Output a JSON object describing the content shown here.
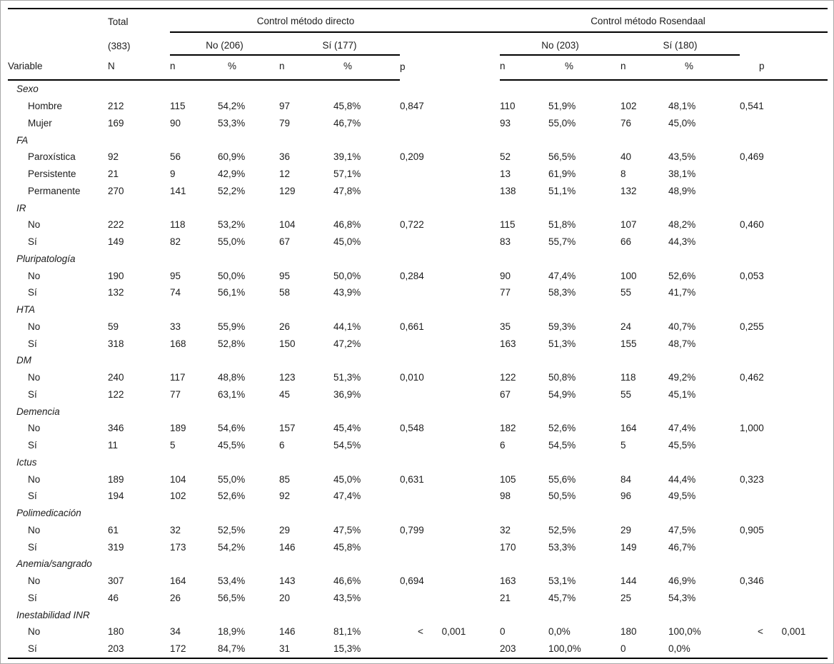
{
  "colors": {
    "background": "#ffffff",
    "rule": "#000000",
    "text": "#1c1c1c",
    "outer_border": "#a8a8a8"
  },
  "header": {
    "variable": "Variable",
    "total_title": "Total",
    "total_sub": "(383)",
    "total_col": "N",
    "group_direct": {
      "title": "Control método directo",
      "no": "No (206)",
      "si": "Sí (177)"
    },
    "group_rosendaal": {
      "title": "Control método Rosendaal",
      "no": "No (203)",
      "si": "Sí (180)"
    },
    "n": "n",
    "pct": "%",
    "p": "p"
  },
  "sections": [
    {
      "variable": "Sexo",
      "rows": [
        {
          "label": "Hombre",
          "cells": [
            "212",
            "115",
            "54,2%",
            "97",
            "45,8%",
            "0,847",
            "110",
            "51,9%",
            "102",
            "48,1%",
            "0,541"
          ]
        },
        {
          "label": "Mujer",
          "cells": [
            "169",
            "90",
            "53,3%",
            "79",
            "46,7%",
            "",
            "93",
            "55,0%",
            "76",
            "45,0%",
            ""
          ]
        }
      ]
    },
    {
      "variable": "FA",
      "rows": [
        {
          "label": "Paroxística",
          "cells": [
            "92",
            "56",
            "60,9%",
            "36",
            "39,1%",
            "0,209",
            "52",
            "56,5%",
            "40",
            "43,5%",
            "0,469"
          ]
        },
        {
          "label": "Persistente",
          "cells": [
            "21",
            "9",
            "42,9%",
            "12",
            "57,1%",
            "",
            "13",
            "61,9%",
            "8",
            "38,1%",
            ""
          ]
        },
        {
          "label": "Permanente",
          "cells": [
            "270",
            "141",
            "52,2%",
            "129",
            "47,8%",
            "",
            "138",
            "51,1%",
            "132",
            "48,9%",
            ""
          ]
        }
      ]
    },
    {
      "variable": "IR",
      "rows": [
        {
          "label": "No",
          "cells": [
            "222",
            "118",
            "53,2%",
            "104",
            "46,8%",
            "0,722",
            "115",
            "51,8%",
            "107",
            "48,2%",
            "0,460"
          ]
        },
        {
          "label": "Sí",
          "cells": [
            "149",
            "82",
            "55,0%",
            "67",
            "45,0%",
            "",
            "83",
            "55,7%",
            "66",
            "44,3%",
            ""
          ]
        }
      ]
    },
    {
      "variable": "Pluripatología",
      "rows": [
        {
          "label": "No",
          "cells": [
            "190",
            "95",
            "50,0%",
            "95",
            "50,0%",
            "0,284",
            "90",
            "47,4%",
            "100",
            "52,6%",
            "0,053"
          ]
        },
        {
          "label": "Sí",
          "cells": [
            "132",
            "74",
            "56,1%",
            "58",
            "43,9%",
            "",
            "77",
            "58,3%",
            "55",
            "41,7%",
            ""
          ]
        }
      ]
    },
    {
      "variable": "HTA",
      "rows": [
        {
          "label": "No",
          "cells": [
            "59",
            "33",
            "55,9%",
            "26",
            "44,1%",
            "0,661",
            "35",
            "59,3%",
            "24",
            "40,7%",
            "0,255"
          ]
        },
        {
          "label": "Sí",
          "cells": [
            "318",
            "168",
            "52,8%",
            "150",
            "47,2%",
            "",
            "163",
            "51,3%",
            "155",
            "48,7%",
            ""
          ]
        }
      ]
    },
    {
      "variable": "DM",
      "rows": [
        {
          "label": "No",
          "cells": [
            "240",
            "117",
            "48,8%",
            "123",
            "51,3%",
            "0,010",
            "122",
            "50,8%",
            "118",
            "49,2%",
            "0,462"
          ]
        },
        {
          "label": "Sí",
          "cells": [
            "122",
            "77",
            "63,1%",
            "45",
            "36,9%",
            "",
            "67",
            "54,9%",
            "55",
            "45,1%",
            ""
          ]
        }
      ]
    },
    {
      "variable": "Demencia",
      "rows": [
        {
          "label": "No",
          "cells": [
            "346",
            "189",
            "54,6%",
            "157",
            "45,4%",
            "0,548",
            "182",
            "52,6%",
            "164",
            "47,4%",
            "1,000"
          ]
        },
        {
          "label": "Sí",
          "cells": [
            "11",
            "5",
            "45,5%",
            "6",
            "54,5%",
            "",
            "6",
            "54,5%",
            "5",
            "45,5%",
            ""
          ]
        }
      ]
    },
    {
      "variable": "Ictus",
      "rows": [
        {
          "label": "No",
          "cells": [
            "189",
            "104",
            "55,0%",
            "85",
            "45,0%",
            "0,631",
            "105",
            "55,6%",
            "84",
            "44,4%",
            "0,323"
          ]
        },
        {
          "label": "Sí",
          "cells": [
            "194",
            "102",
            "52,6%",
            "92",
            "47,4%",
            "",
            "98",
            "50,5%",
            "96",
            "49,5%",
            ""
          ]
        }
      ]
    },
    {
      "variable": "Polimedicación",
      "rows": [
        {
          "label": "No",
          "cells": [
            "61",
            "32",
            "52,5%",
            "29",
            "47,5%",
            "0,799",
            "32",
            "52,5%",
            "29",
            "47,5%",
            "0,905"
          ]
        },
        {
          "label": "Sí",
          "cells": [
            "319",
            "173",
            "54,2%",
            "146",
            "45,8%",
            "",
            "170",
            "53,3%",
            "149",
            "46,7%",
            ""
          ]
        }
      ]
    },
    {
      "variable": "Anemia/sangrado",
      "rows": [
        {
          "label": "No",
          "cells": [
            "307",
            "164",
            "53,4%",
            "143",
            "46,6%",
            "0,694",
            "163",
            "53,1%",
            "144",
            "46,9%",
            "0,346"
          ]
        },
        {
          "label": "Sí",
          "cells": [
            "46",
            "26",
            "56,5%",
            "20",
            "43,5%",
            "",
            "21",
            "45,7%",
            "25",
            "54,3%",
            ""
          ]
        }
      ]
    },
    {
      "variable": "Inestabilidad INR",
      "rows": [
        {
          "label": "No",
          "cells": [
            "180",
            "34",
            "18,9%",
            "146",
            "81,1%",
            "< 0,001",
            "0",
            "0,0%",
            "180",
            "100,0%",
            "< 0,001"
          ]
        },
        {
          "label": "Sí",
          "cells": [
            "203",
            "172",
            "84,7%",
            "31",
            "15,3%",
            "",
            "203",
            "100,0%",
            "0",
            "0,0%",
            ""
          ]
        }
      ]
    }
  ]
}
